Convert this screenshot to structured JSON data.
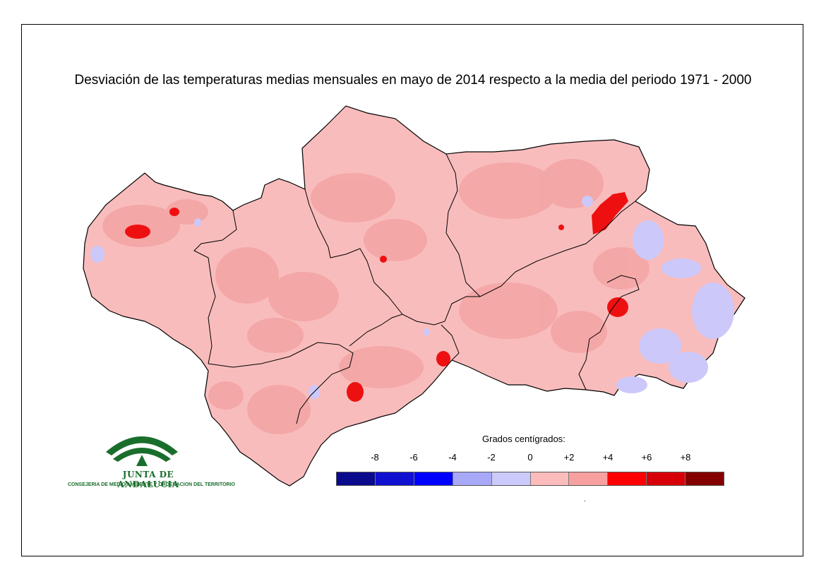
{
  "title": "Desviación de las temperaturas medias mensuales en mayo de 2014 respecto a la media del periodo 1971 - 2000",
  "legend": {
    "title": "Grados centígrados:",
    "ticks": [
      "-8",
      "-6",
      "-4",
      "-2",
      "0",
      "+2",
      "+4",
      "+6",
      "+8"
    ],
    "colors": [
      "#0a0a8c",
      "#1010d0",
      "#0000ff",
      "#a8a8f8",
      "#cccafa",
      "#fcbcbc",
      "#f8a0a0",
      "#ff0000",
      "#d80008",
      "#840000"
    ]
  },
  "logo": {
    "name": "JUNTA DE ANDALUCIA",
    "subtitle": "CONSEJERIA DE MEDIO AMBIENTE Y ORDENACION DEL TERRITORIO"
  },
  "footnote": "."
}
